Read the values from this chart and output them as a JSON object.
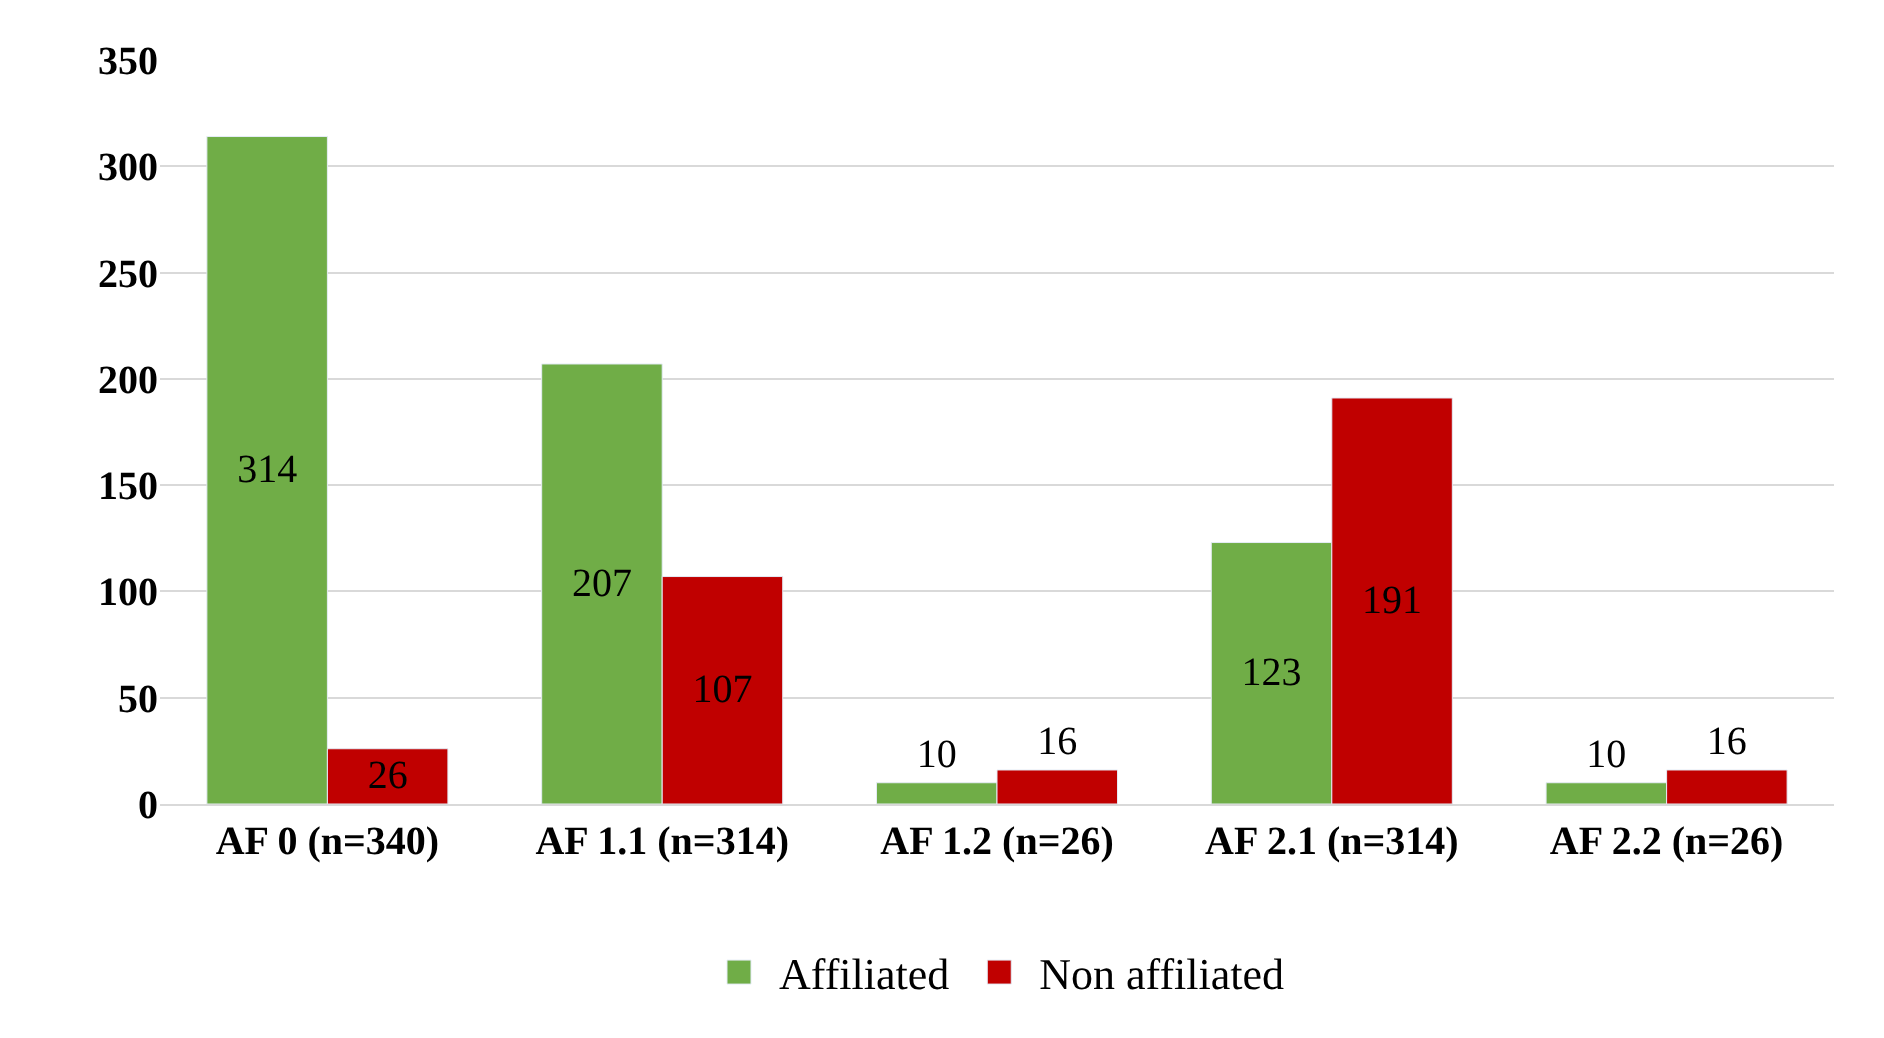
{
  "chart_data": {
    "type": "bar",
    "categories": [
      "AF 0 (n=340)",
      "AF 1.1 (n=314)",
      "AF 1.2 (n=26)",
      "AF 2.1 (n=314)",
      "AF 2.2 (n=26)"
    ],
    "series": [
      {
        "name": "Affiliated",
        "color": "#70ad47",
        "values": [
          314,
          207,
          10,
          123,
          10
        ]
      },
      {
        "name": "Non affiliated",
        "color": "#c00000",
        "values": [
          26,
          107,
          16,
          191,
          16
        ]
      }
    ],
    "ylim": [
      0,
      350
    ],
    "yticks": [
      0,
      50,
      100,
      150,
      200,
      250,
      300,
      350
    ],
    "grid": "y",
    "legend": "bottom",
    "data_labels": true
  }
}
